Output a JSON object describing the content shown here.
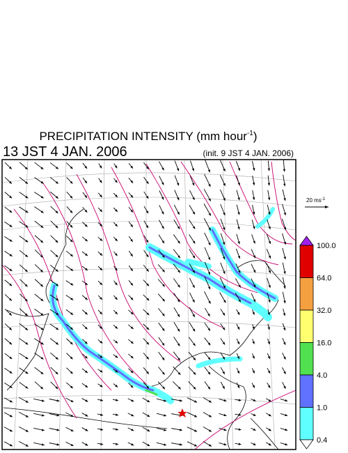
{
  "header": {
    "title": {
      "text": "PRECIPITATION INTENSITY (mm hour",
      "superscript": "-1",
      "closing": ")"
    },
    "valid_time": "13 JST 4 JAN. 2006",
    "init_time": "(init. 9 JST 4 JAN. 2006)"
  },
  "wind_reference": {
    "text": "20 ms",
    "superscript": "-1"
  },
  "colorbar": {
    "levels": [
      {
        "label": "100.0",
        "color": "#e00000"
      },
      {
        "label": "64.0",
        "color": "#f5a040"
      },
      {
        "label": "32.0",
        "color": "#ffff70"
      },
      {
        "label": "16.0",
        "color": "#50e050"
      },
      {
        "label": "4.0",
        "color": "#6070ff"
      },
      {
        "label": "1.0",
        "color": "#60ffff"
      },
      {
        "label": "0.4",
        "color": "#ffffff"
      }
    ],
    "over_color": "#a020f0"
  }
}
